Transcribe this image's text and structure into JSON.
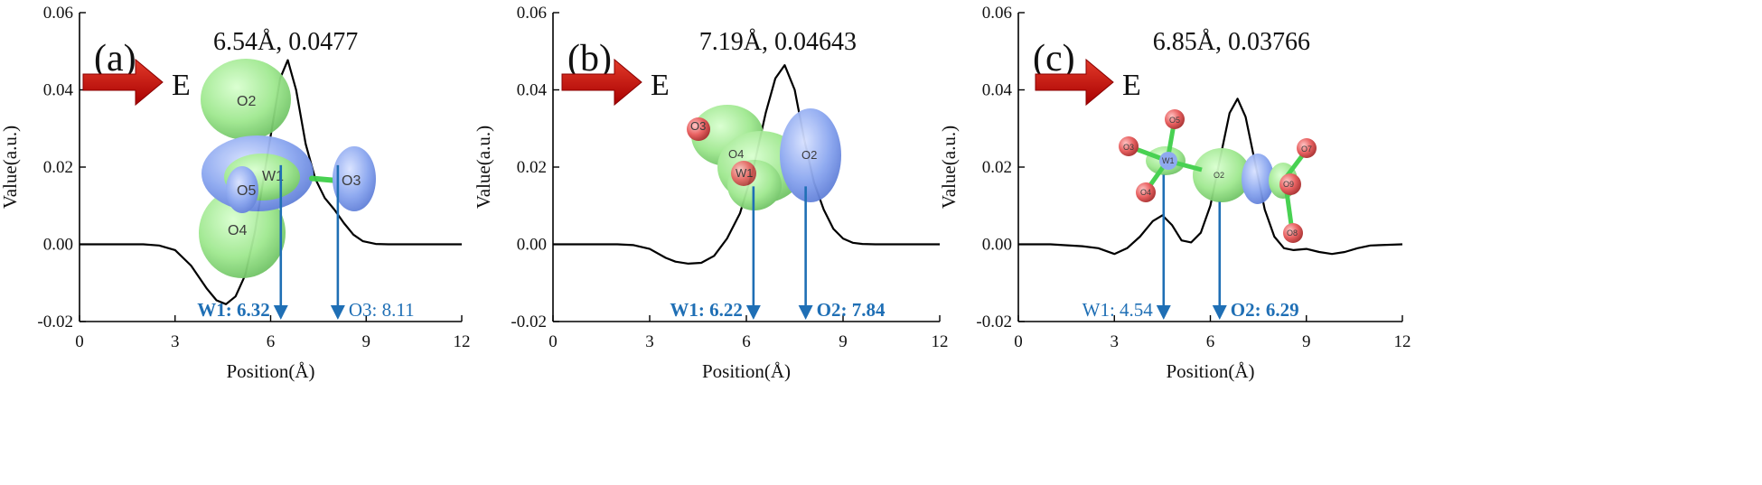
{
  "arrow_label": "E",
  "colors": {
    "curve": "#000000",
    "marker": "#1f6fb5",
    "arrow": "#c00000",
    "green_lobe": "#9fe88f",
    "blue_lobe": "#8aa6f0",
    "oxygen": "#e85a5a"
  },
  "chart_data": [
    {
      "type": "line",
      "panel_label": "(a)",
      "peak_label": "6.54Å, 0.0477",
      "xlabel": "Position(Å)",
      "ylabel": "Value(a.u.)",
      "xlim": [
        0,
        12
      ],
      "ylim": [
        -0.02,
        0.06
      ],
      "xticks": [
        "0",
        "3",
        "6",
        "9",
        "12"
      ],
      "yticks": [
        "-0.02",
        "0.00",
        "0.02",
        "0.04",
        "0.06"
      ],
      "x": [
        0,
        1,
        2,
        2.5,
        3,
        3.5,
        4,
        4.3,
        4.6,
        4.9,
        5.2,
        5.5,
        5.8,
        6.1,
        6.3,
        6.54,
        6.8,
        7.1,
        7.4,
        7.7,
        8.0,
        8.3,
        8.6,
        8.9,
        9.3,
        9.7,
        10.2,
        11,
        12
      ],
      "y": [
        0,
        0,
        0,
        -0.0003,
        -0.0015,
        -0.0055,
        -0.0115,
        -0.0145,
        -0.0155,
        -0.0135,
        -0.008,
        0.003,
        0.018,
        0.033,
        0.043,
        0.0477,
        0.04,
        0.026,
        0.017,
        0.012,
        0.009,
        0.0055,
        0.0025,
        0.0008,
        0.0001,
        0,
        0,
        0,
        0
      ],
      "markers": [
        {
          "label": "W1: 6.32",
          "x": 6.32,
          "y_top": 0.0205,
          "bold": true
        },
        {
          "label": "O3: 8.11",
          "x": 8.11,
          "y_top": 0.0205,
          "bold": false
        }
      ],
      "atoms": [
        "O2",
        "W1",
        "O5",
        "O3",
        "O4"
      ]
    },
    {
      "type": "line",
      "panel_label": "(b)",
      "peak_label": "7.19Å, 0.04643",
      "xlabel": "Position(Å)",
      "ylabel": "Value(a.u.)",
      "xlim": [
        0,
        12
      ],
      "ylim": [
        -0.02,
        0.06
      ],
      "xticks": [
        "0",
        "3",
        "6",
        "9",
        "12"
      ],
      "yticks": [
        "-0.02",
        "0.00",
        "0.02",
        "0.04",
        "0.06"
      ],
      "x": [
        0,
        1,
        2,
        2.5,
        3,
        3.5,
        3.8,
        4.2,
        4.6,
        5.0,
        5.4,
        5.8,
        6.2,
        6.6,
        6.9,
        7.19,
        7.5,
        7.8,
        8.1,
        8.4,
        8.7,
        9.0,
        9.3,
        9.6,
        10,
        11,
        12
      ],
      "y": [
        0,
        0,
        0,
        -0.0002,
        -0.0012,
        -0.0035,
        -0.0045,
        -0.005,
        -0.0048,
        -0.003,
        0.0015,
        0.008,
        0.019,
        0.034,
        0.043,
        0.0464,
        0.04,
        0.027,
        0.016,
        0.009,
        0.004,
        0.0015,
        0.0004,
        0.0001,
        0,
        0,
        0
      ],
      "markers": [
        {
          "label": "W1: 6.22",
          "x": 6.22,
          "y_top": 0.015,
          "bold": true
        },
        {
          "label": "O2: 7.84",
          "x": 7.84,
          "y_top": 0.015,
          "bold": true
        }
      ],
      "atoms": [
        "O3",
        "O4",
        "W1",
        "O2"
      ]
    },
    {
      "type": "line",
      "panel_label": "(c)",
      "peak_label": "6.85Å, 0.03766",
      "xlabel": "Position(Å)",
      "ylabel": "Value(a.u.)",
      "xlim": [
        0,
        12
      ],
      "ylim": [
        -0.02,
        0.06
      ],
      "xticks": [
        "0",
        "3",
        "6",
        "9",
        "12"
      ],
      "yticks": [
        "-0.02",
        "0.00",
        "0.02",
        "0.04",
        "0.06"
      ],
      "x": [
        0,
        1,
        2,
        2.5,
        3,
        3.4,
        3.8,
        4.2,
        4.5,
        4.8,
        5.1,
        5.4,
        5.7,
        6.0,
        6.3,
        6.6,
        6.85,
        7.1,
        7.4,
        7.7,
        8.0,
        8.3,
        8.6,
        9.0,
        9.4,
        9.8,
        10.2,
        10.6,
        11,
        12
      ],
      "y": [
        0,
        0,
        -0.0005,
        -0.001,
        -0.0025,
        -0.001,
        0.002,
        0.006,
        0.0075,
        0.005,
        0.001,
        0.0005,
        0.003,
        0.01,
        0.022,
        0.034,
        0.0377,
        0.033,
        0.021,
        0.009,
        0.002,
        -0.001,
        -0.0015,
        -0.0012,
        -0.002,
        -0.0025,
        -0.002,
        -0.001,
        -0.0003,
        0
      ],
      "markers": [
        {
          "label": "W1: 4.54",
          "x": 4.54,
          "y_top": 0.018,
          "bold": false
        },
        {
          "label": "O2: 6.29",
          "x": 6.29,
          "y_top": 0.011,
          "bold": true
        }
      ],
      "atoms": [
        "O5",
        "O3",
        "W1",
        "O4",
        "O2",
        "O7",
        "O9",
        "O8"
      ]
    }
  ]
}
